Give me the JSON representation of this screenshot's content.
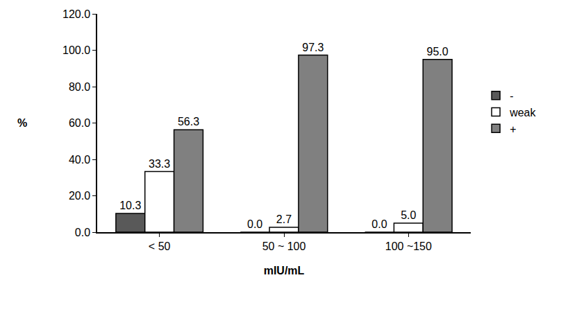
{
  "chart_data": {
    "type": "bar",
    "x_label": "mIU/mL",
    "y_label": "%",
    "categories": [
      "< 50",
      "50 ~ 100",
      "100 ~150"
    ],
    "series": [
      {
        "name": "-",
        "color": "#595959",
        "values": [
          10.3,
          0.0,
          0.0
        ],
        "value_labels": [
          "10.3",
          "0.0",
          "0.0"
        ]
      },
      {
        "name": "weak",
        "color": "#ffffff",
        "values": [
          33.3,
          2.7,
          5.0
        ],
        "value_labels": [
          "33.3",
          "2.7",
          "5.0"
        ]
      },
      {
        "name": "+",
        "color": "#808080",
        "values": [
          56.3,
          97.3,
          95.0
        ],
        "value_labels": [
          "56.3",
          "97.3",
          "95.0"
        ]
      }
    ],
    "ylim": [
      0,
      120
    ],
    "yticks": [
      {
        "value": 0,
        "label": "0.0"
      },
      {
        "value": 20,
        "label": "20.0"
      },
      {
        "value": 40,
        "label": "40.0"
      },
      {
        "value": 60,
        "label": "60.0"
      },
      {
        "value": 80,
        "label": "80.0"
      },
      {
        "value": 100,
        "label": "100.0"
      },
      {
        "value": 120,
        "label": "120.0"
      }
    ],
    "grid": false,
    "legend": "right",
    "data_labels": true
  }
}
